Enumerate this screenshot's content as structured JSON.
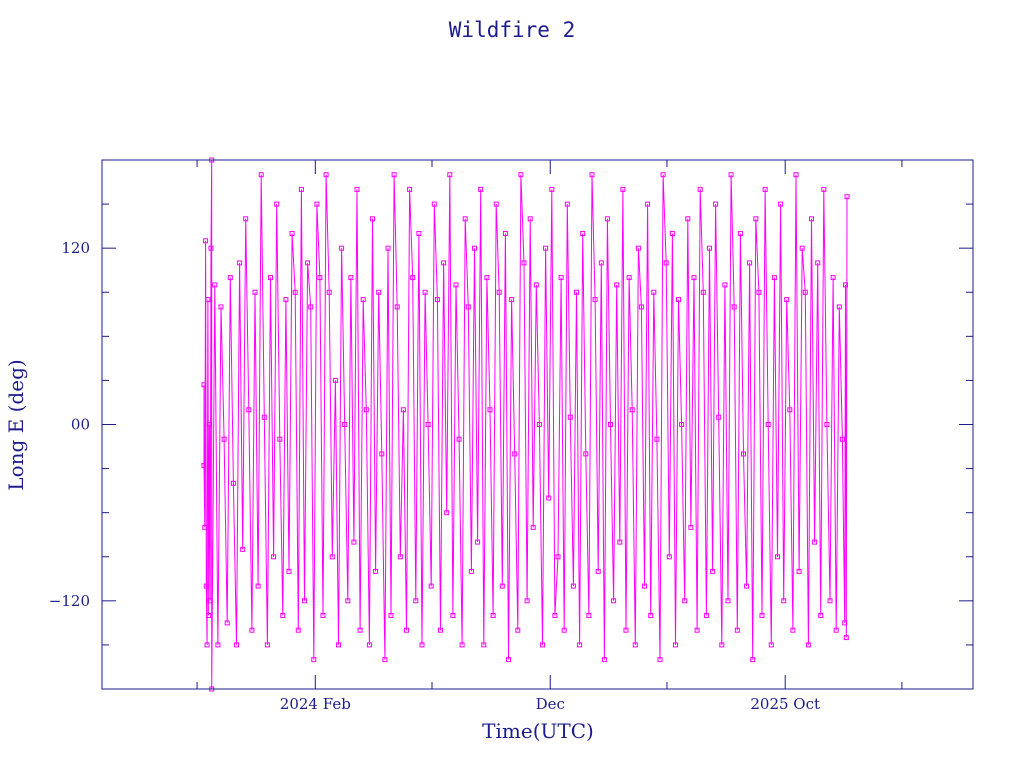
{
  "chart_data": {
    "type": "line",
    "title": "Wildfire 2",
    "xlabel": "Time(UTC)",
    "ylabel": "Long E (deg)",
    "ylim": [
      -180,
      180
    ],
    "xlim": [
      "2023-05-01",
      "2026-06-01"
    ],
    "yticks": [
      {
        "value": -120,
        "label": "−120"
      },
      {
        "value": 0,
        "label": "00"
      },
      {
        "value": 120,
        "label": "120"
      }
    ],
    "xticks": [
      {
        "value": "2024-02-01",
        "label": "2024 Feb"
      },
      {
        "value": "2024-12-01",
        "label": "Dec"
      },
      {
        "value": "2025-10-01",
        "label": "2025 Oct"
      }
    ],
    "grid": false,
    "series": [
      {
        "color": "#ff00ff",
        "marker": "square",
        "x_start": "2023-09-10",
        "x_end": "2025-12-20",
        "points": [
          [
            "2023-09-10",
            27
          ],
          [
            "2023-09-10",
            -28
          ],
          [
            "2023-09-11",
            -70
          ],
          [
            "2023-09-12",
            125
          ],
          [
            "2023-09-13",
            -110
          ],
          [
            "2023-09-14",
            -150
          ],
          [
            "2023-09-15",
            85
          ],
          [
            "2023-09-16",
            -130
          ],
          [
            "2023-09-17",
            0
          ],
          [
            "2023-09-18",
            -120
          ],
          [
            "2023-09-19",
            120
          ],
          [
            "2023-09-20",
            180
          ],
          [
            "2023-09-20",
            -180
          ],
          [
            "2023-09-24",
            95
          ],
          [
            "2023-09-28",
            -150
          ],
          [
            "2023-10-02",
            80
          ],
          [
            "2023-10-06",
            -10
          ],
          [
            "2023-10-10",
            -135
          ],
          [
            "2023-10-14",
            100
          ],
          [
            "2023-10-18",
            -40
          ],
          [
            "2023-10-22",
            -150
          ],
          [
            "2023-10-26",
            110
          ],
          [
            "2023-10-30",
            -85
          ],
          [
            "2023-11-03",
            140
          ],
          [
            "2023-11-07",
            10
          ],
          [
            "2023-11-11",
            -140
          ],
          [
            "2023-11-15",
            90
          ],
          [
            "2023-11-19",
            -110
          ],
          [
            "2023-11-23",
            170
          ],
          [
            "2023-11-27",
            5
          ],
          [
            "2023-12-01",
            -150
          ],
          [
            "2023-12-05",
            100
          ],
          [
            "2023-12-09",
            -90
          ],
          [
            "2023-12-13",
            150
          ],
          [
            "2023-12-17",
            -10
          ],
          [
            "2023-12-21",
            -130
          ],
          [
            "2023-12-25",
            85
          ],
          [
            "2023-12-29",
            -100
          ],
          [
            "2024-01-02",
            130
          ],
          [
            "2024-01-06",
            90
          ],
          [
            "2024-01-10",
            -140
          ],
          [
            "2024-01-14",
            160
          ],
          [
            "2024-01-18",
            -120
          ],
          [
            "2024-01-22",
            110
          ],
          [
            "2024-01-26",
            80
          ],
          [
            "2024-01-30",
            -160
          ],
          [
            "2024-02-03",
            150
          ],
          [
            "2024-02-07",
            100
          ],
          [
            "2024-02-11",
            -130
          ],
          [
            "2024-02-15",
            170
          ],
          [
            "2024-02-19",
            90
          ],
          [
            "2024-02-23",
            -90
          ],
          [
            "2024-02-27",
            30
          ],
          [
            "2024-03-02",
            -150
          ],
          [
            "2024-03-06",
            120
          ],
          [
            "2024-03-10",
            0
          ],
          [
            "2024-03-14",
            -120
          ],
          [
            "2024-03-18",
            100
          ],
          [
            "2024-03-22",
            -80
          ],
          [
            "2024-03-26",
            160
          ],
          [
            "2024-03-30",
            -140
          ],
          [
            "2024-04-03",
            85
          ],
          [
            "2024-04-07",
            10
          ],
          [
            "2024-04-11",
            -150
          ],
          [
            "2024-04-15",
            140
          ],
          [
            "2024-04-19",
            -100
          ],
          [
            "2024-04-23",
            90
          ],
          [
            "2024-04-27",
            -20
          ],
          [
            "2024-05-01",
            -160
          ],
          [
            "2024-05-05",
            120
          ],
          [
            "2024-05-09",
            -130
          ],
          [
            "2024-05-13",
            170
          ],
          [
            "2024-05-17",
            80
          ],
          [
            "2024-05-21",
            -90
          ],
          [
            "2024-05-25",
            10
          ],
          [
            "2024-05-29",
            -140
          ],
          [
            "2024-06-02",
            160
          ],
          [
            "2024-06-06",
            100
          ],
          [
            "2024-06-10",
            -120
          ],
          [
            "2024-06-14",
            130
          ],
          [
            "2024-06-18",
            -150
          ],
          [
            "2024-06-22",
            90
          ],
          [
            "2024-06-26",
            0
          ],
          [
            "2024-06-30",
            -110
          ],
          [
            "2024-07-04",
            150
          ],
          [
            "2024-07-08",
            85
          ],
          [
            "2024-07-12",
            -140
          ],
          [
            "2024-07-16",
            110
          ],
          [
            "2024-07-20",
            -60
          ],
          [
            "2024-07-24",
            170
          ],
          [
            "2024-07-28",
            -130
          ],
          [
            "2024-08-01",
            95
          ],
          [
            "2024-08-05",
            -10
          ],
          [
            "2024-08-09",
            -150
          ],
          [
            "2024-08-13",
            140
          ],
          [
            "2024-08-17",
            80
          ],
          [
            "2024-08-21",
            -100
          ],
          [
            "2024-08-25",
            120
          ],
          [
            "2024-08-29",
            -80
          ],
          [
            "2024-09-02",
            160
          ],
          [
            "2024-09-06",
            -150
          ],
          [
            "2024-09-10",
            100
          ],
          [
            "2024-09-14",
            10
          ],
          [
            "2024-09-18",
            -130
          ],
          [
            "2024-09-22",
            150
          ],
          [
            "2024-09-26",
            90
          ],
          [
            "2024-09-30",
            -110
          ],
          [
            "2024-10-04",
            130
          ],
          [
            "2024-10-08",
            -160
          ],
          [
            "2024-10-12",
            85
          ],
          [
            "2024-10-16",
            -20
          ],
          [
            "2024-10-20",
            -140
          ],
          [
            "2024-10-24",
            170
          ],
          [
            "2024-10-28",
            110
          ],
          [
            "2024-11-01",
            -120
          ],
          [
            "2024-11-05",
            140
          ],
          [
            "2024-11-09",
            -70
          ],
          [
            "2024-11-13",
            95
          ],
          [
            "2024-11-17",
            0
          ],
          [
            "2024-11-21",
            -150
          ],
          [
            "2024-11-25",
            120
          ],
          [
            "2024-11-29",
            -50
          ],
          [
            "2024-12-03",
            160
          ],
          [
            "2024-12-07",
            -130
          ],
          [
            "2024-12-11",
            -90
          ],
          [
            "2024-12-15",
            100
          ],
          [
            "2024-12-19",
            -140
          ],
          [
            "2024-12-23",
            150
          ],
          [
            "2024-12-27",
            5
          ],
          [
            "2024-12-31",
            -110
          ],
          [
            "2025-01-04",
            90
          ],
          [
            "2025-01-08",
            -150
          ],
          [
            "2025-01-12",
            130
          ],
          [
            "2025-01-16",
            -20
          ],
          [
            "2025-01-20",
            -130
          ],
          [
            "2025-01-24",
            170
          ],
          [
            "2025-01-28",
            85
          ],
          [
            "2025-02-01",
            -100
          ],
          [
            "2025-02-05",
            110
          ],
          [
            "2025-02-09",
            -160
          ],
          [
            "2025-02-13",
            140
          ],
          [
            "2025-02-17",
            0
          ],
          [
            "2025-02-21",
            -120
          ],
          [
            "2025-02-25",
            95
          ],
          [
            "2025-03-01",
            -80
          ],
          [
            "2025-03-05",
            160
          ],
          [
            "2025-03-09",
            -140
          ],
          [
            "2025-03-13",
            100
          ],
          [
            "2025-03-17",
            10
          ],
          [
            "2025-03-21",
            -150
          ],
          [
            "2025-03-25",
            120
          ],
          [
            "2025-03-29",
            80
          ],
          [
            "2025-04-02",
            -110
          ],
          [
            "2025-04-06",
            150
          ],
          [
            "2025-04-10",
            -130
          ],
          [
            "2025-04-14",
            90
          ],
          [
            "2025-04-18",
            -10
          ],
          [
            "2025-04-22",
            -160
          ],
          [
            "2025-04-26",
            170
          ],
          [
            "2025-04-30",
            110
          ],
          [
            "2025-05-04",
            -90
          ],
          [
            "2025-05-08",
            130
          ],
          [
            "2025-05-12",
            -150
          ],
          [
            "2025-05-16",
            85
          ],
          [
            "2025-05-20",
            0
          ],
          [
            "2025-05-24",
            -120
          ],
          [
            "2025-05-28",
            140
          ],
          [
            "2025-06-01",
            -70
          ],
          [
            "2025-06-05",
            100
          ],
          [
            "2025-06-09",
            -140
          ],
          [
            "2025-06-13",
            160
          ],
          [
            "2025-06-17",
            90
          ],
          [
            "2025-06-21",
            -130
          ],
          [
            "2025-06-25",
            120
          ],
          [
            "2025-06-29",
            -100
          ],
          [
            "2025-07-03",
            150
          ],
          [
            "2025-07-07",
            5
          ],
          [
            "2025-07-11",
            -150
          ],
          [
            "2025-07-15",
            95
          ],
          [
            "2025-07-19",
            -120
          ],
          [
            "2025-07-23",
            170
          ],
          [
            "2025-07-27",
            80
          ],
          [
            "2025-07-31",
            -140
          ],
          [
            "2025-08-04",
            130
          ],
          [
            "2025-08-08",
            -20
          ],
          [
            "2025-08-12",
            -110
          ],
          [
            "2025-08-16",
            110
          ],
          [
            "2025-08-20",
            -160
          ],
          [
            "2025-08-24",
            140
          ],
          [
            "2025-08-28",
            90
          ],
          [
            "2025-09-01",
            -130
          ],
          [
            "2025-09-05",
            160
          ],
          [
            "2025-09-09",
            0
          ],
          [
            "2025-09-13",
            -150
          ],
          [
            "2025-09-17",
            100
          ],
          [
            "2025-09-21",
            -90
          ],
          [
            "2025-09-25",
            150
          ],
          [
            "2025-09-29",
            -120
          ],
          [
            "2025-10-03",
            85
          ],
          [
            "2025-10-07",
            10
          ],
          [
            "2025-10-11",
            -140
          ],
          [
            "2025-10-15",
            170
          ],
          [
            "2025-10-19",
            -100
          ],
          [
            "2025-10-23",
            120
          ],
          [
            "2025-10-27",
            90
          ],
          [
            "2025-10-31",
            -150
          ],
          [
            "2025-11-04",
            140
          ],
          [
            "2025-11-08",
            -80
          ],
          [
            "2025-11-12",
            110
          ],
          [
            "2025-11-16",
            -130
          ],
          [
            "2025-11-20",
            160
          ],
          [
            "2025-11-24",
            0
          ],
          [
            "2025-11-28",
            -120
          ],
          [
            "2025-12-02",
            100
          ],
          [
            "2025-12-06",
            -140
          ],
          [
            "2025-12-10",
            80
          ],
          [
            "2025-12-14",
            -10
          ],
          [
            "2025-12-17",
            -135
          ],
          [
            "2025-12-18",
            95
          ],
          [
            "2025-12-19",
            -145
          ],
          [
            "2025-12-20",
            155
          ]
        ]
      }
    ]
  }
}
